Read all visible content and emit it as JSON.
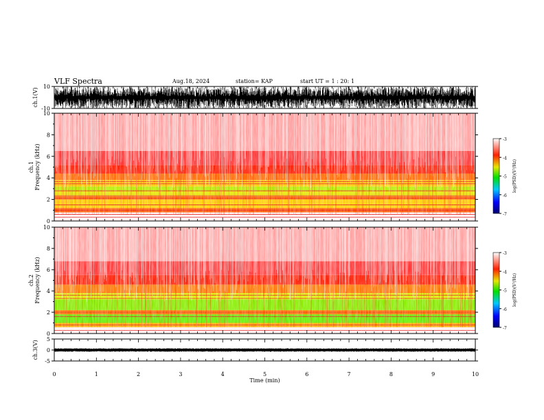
{
  "header": {
    "title": "VLF Spectra",
    "date": "Aug.18, 2024",
    "station": "station= KAP",
    "start": "start UT = 1 : 20: 1"
  },
  "chart_data": [
    {
      "type": "line",
      "id": "ch1_waveform",
      "ylabel": "ch.1(V)",
      "ylim": [
        -10,
        10
      ],
      "yticks": [
        "10",
        "-10"
      ],
      "xlim": [
        0,
        10
      ],
      "amplitude_band": [
        -10,
        10
      ],
      "color": "#000000"
    },
    {
      "type": "heatmap",
      "id": "ch1_spectrogram",
      "ylabel": "ch.1\nFrequency (kHz)",
      "xlim": [
        0,
        10
      ],
      "ylim": [
        0,
        10
      ],
      "yticks": [
        0,
        2,
        4,
        6,
        8,
        10
      ],
      "colorbar": {
        "label": "log(PSD)(V²/Hz)",
        "range": [
          -7,
          -3
        ],
        "ticks": [
          "-3",
          "-4",
          "-5",
          "-6",
          "-7"
        ]
      },
      "bands": [
        {
          "from": 0,
          "to": 0.8,
          "color": "#fff0f0"
        },
        {
          "from": 0.8,
          "to": 1.2,
          "color": "#ff5a00"
        },
        {
          "from": 1.2,
          "to": 2.0,
          "color": "#ffd000"
        },
        {
          "from": 2.0,
          "to": 2.3,
          "color": "#ff6600"
        },
        {
          "from": 2.3,
          "to": 2.8,
          "color": "#e6e600"
        },
        {
          "from": 2.8,
          "to": 3.2,
          "color": "#b8ee00"
        },
        {
          "from": 3.2,
          "to": 3.8,
          "color": "#ffcc00"
        },
        {
          "from": 3.8,
          "to": 4.4,
          "color": "#ff6a00"
        },
        {
          "from": 4.4,
          "to": 5.2,
          "color": "#ff1a00"
        },
        {
          "from": 5.2,
          "to": 6.5,
          "color": "#ff3030"
        },
        {
          "from": 6.5,
          "to": 10.0,
          "color": "#ff9c9c"
        }
      ],
      "lines_khz": [
        0.35,
        0.6,
        1.0,
        1.5,
        2.1,
        2.35,
        2.8,
        3.45,
        3.65
      ]
    },
    {
      "type": "heatmap",
      "id": "ch2_spectrogram",
      "ylabel": "ch.2\nFrequency (kHz)",
      "xlim": [
        0,
        10
      ],
      "ylim": [
        0,
        10
      ],
      "yticks": [
        0,
        2,
        4,
        6,
        8,
        10
      ],
      "colorbar": {
        "label": "log(PSD)(V²/Hz)",
        "range": [
          -7,
          -3
        ],
        "ticks": [
          "-3",
          "-4",
          "-5",
          "-6",
          "-7"
        ]
      },
      "bands": [
        {
          "from": 0,
          "to": 0.6,
          "color": "#fff0f0"
        },
        {
          "from": 0.6,
          "to": 1.0,
          "color": "#ffaa00"
        },
        {
          "from": 1.0,
          "to": 1.8,
          "color": "#66ee00"
        },
        {
          "from": 1.8,
          "to": 2.2,
          "color": "#ff7700"
        },
        {
          "from": 2.2,
          "to": 3.2,
          "color": "#88ee00"
        },
        {
          "from": 3.2,
          "to": 3.8,
          "color": "#ddee00"
        },
        {
          "from": 3.8,
          "to": 4.6,
          "color": "#ff7a00"
        },
        {
          "from": 4.6,
          "to": 5.5,
          "color": "#ff1a00"
        },
        {
          "from": 5.5,
          "to": 6.8,
          "color": "#ff3030"
        },
        {
          "from": 6.8,
          "to": 10.0,
          "color": "#ff9c9c"
        }
      ],
      "lines_khz": [
        0.3,
        0.8,
        1.6,
        2.0,
        3.3,
        3.6
      ]
    },
    {
      "type": "line",
      "id": "ch3_waveform",
      "ylabel": "ch.3(V)",
      "ylim": [
        -5,
        5
      ],
      "yticks": [
        "5",
        "0",
        "-5"
      ],
      "xlim": [
        0,
        10
      ],
      "amplitude_band": [
        -0.8,
        0.8
      ],
      "color": "#000000"
    }
  ],
  "xaxis": {
    "label": "Time (min)",
    "ticks": [
      "0",
      "1",
      "2",
      "3",
      "4",
      "5",
      "6",
      "7",
      "8",
      "9",
      "10"
    ]
  }
}
